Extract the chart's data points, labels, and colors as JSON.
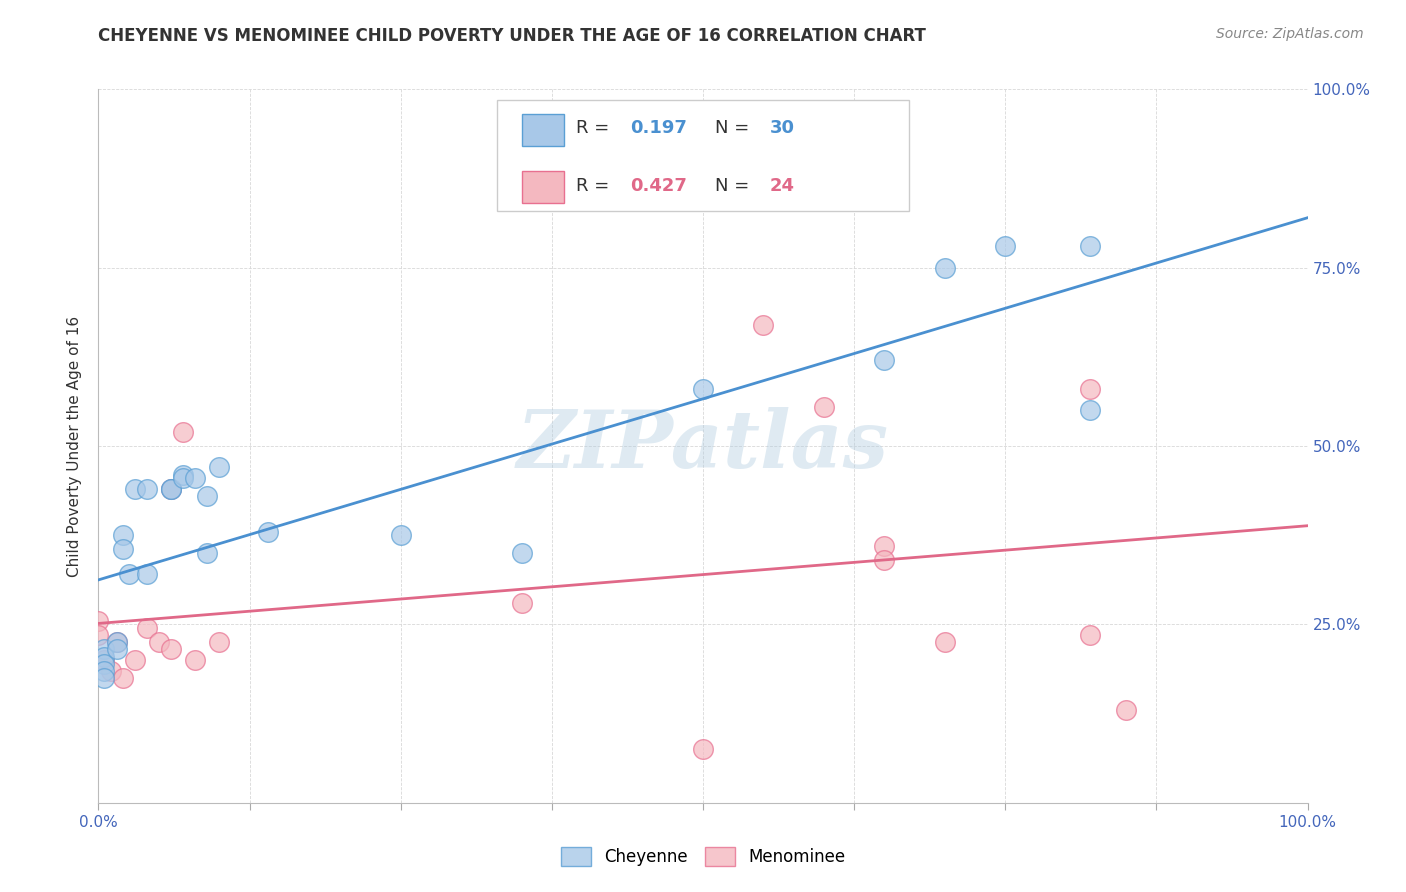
{
  "title": "CHEYENNE VS MENOMINEE CHILD POVERTY UNDER THE AGE OF 16 CORRELATION CHART",
  "source": "Source: ZipAtlas.com",
  "ylabel": "Child Poverty Under the Age of 16",
  "cheyenne_R": 0.197,
  "cheyenne_N": 30,
  "menominee_R": 0.427,
  "menominee_N": 24,
  "cheyenne_color": "#a8c8e8",
  "menominee_color": "#f4b8c0",
  "cheyenne_edge_color": "#5a9fd4",
  "menominee_edge_color": "#e87090",
  "cheyenne_line_color": "#4a90d0",
  "menominee_line_color": "#e06888",
  "background_color": "#ffffff",
  "grid_color": "#d8d8d8",
  "cheyenne_x": [
    0.005,
    0.005,
    0.005,
    0.005,
    0.005,
    0.015,
    0.015,
    0.02,
    0.02,
    0.025,
    0.03,
    0.04,
    0.04,
    0.06,
    0.06,
    0.07,
    0.07,
    0.08,
    0.09,
    0.09,
    0.1,
    0.14,
    0.25,
    0.35,
    0.5,
    0.65,
    0.7,
    0.75,
    0.82,
    0.82
  ],
  "cheyenne_y": [
    0.215,
    0.205,
    0.195,
    0.185,
    0.175,
    0.225,
    0.215,
    0.375,
    0.355,
    0.32,
    0.44,
    0.44,
    0.32,
    0.44,
    0.44,
    0.46,
    0.455,
    0.455,
    0.43,
    0.35,
    0.47,
    0.38,
    0.375,
    0.35,
    0.58,
    0.62,
    0.75,
    0.78,
    0.55,
    0.78
  ],
  "menominee_x": [
    0.0,
    0.0,
    0.005,
    0.01,
    0.015,
    0.02,
    0.03,
    0.04,
    0.05,
    0.06,
    0.06,
    0.07,
    0.08,
    0.1,
    0.35,
    0.5,
    0.55,
    0.6,
    0.65,
    0.65,
    0.7,
    0.82,
    0.82,
    0.85
  ],
  "menominee_y": [
    0.255,
    0.235,
    0.2,
    0.185,
    0.225,
    0.175,
    0.2,
    0.245,
    0.225,
    0.215,
    0.44,
    0.52,
    0.2,
    0.225,
    0.28,
    0.075,
    0.67,
    0.555,
    0.36,
    0.34,
    0.225,
    0.58,
    0.235,
    0.13
  ],
  "xlim": [
    0.0,
    1.0
  ],
  "ylim": [
    0.0,
    1.0
  ],
  "xticks": [
    0.0,
    0.125,
    0.25,
    0.375,
    0.5,
    0.625,
    0.75,
    0.875,
    1.0
  ],
  "yticks": [
    0.0,
    0.25,
    0.5,
    0.75,
    1.0
  ],
  "watermark": "ZIPatlas"
}
